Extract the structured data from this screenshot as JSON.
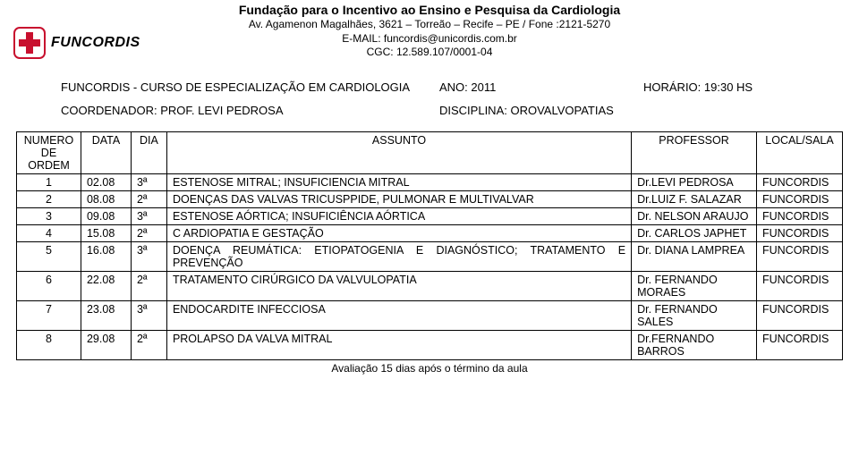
{
  "header": {
    "title": "Fundação para o Incentivo ao Ensino e Pesquisa da Cardiologia",
    "address": "Av. Agamenon Magalhães, 3621 – Torreão – Recife – PE / Fone :2121-5270",
    "email": "E-MAIL: funcordis@unicordis.com.br",
    "cgc": "CGC: 12.589.107/0001-04"
  },
  "logo_text": "FUNCORDIS",
  "course": {
    "title": "FUNCORDIS - CURSO DE ESPECIALIZAÇÃO EM CARDIOLOGIA",
    "year": "ANO: 2011",
    "time": "HORÁRIO: 19:30 HS",
    "coord": "COORDENADOR: PROF. LEVI PEDROSA",
    "disc": "DISCIPLINA: OROVALVOPATIAS"
  },
  "columns": {
    "num": "NUMERO DE ORDEM",
    "data": "DATA",
    "dia": "DIA",
    "assunto": "ASSUNTO",
    "prof": "PROFESSOR",
    "local": "LOCAL/SALA"
  },
  "rows_a": [
    {
      "n": "1",
      "data": "02.08",
      "dia": "3ª",
      "assunto": "ESTENOSE MITRAL; INSUFICIENCIA MITRAL",
      "prof": "Dr.LEVI PEDROSA",
      "local": "FUNCORDIS"
    },
    {
      "n": "2",
      "data": "08.08",
      "dia": "2ª",
      "assunto": "DOENÇAS DAS VALVAS TRICUSPPIDE, PULMONAR E MULTIVALVAR",
      "prof": "Dr.LUIZ F. SALAZAR",
      "local": "FUNCORDIS"
    },
    {
      "n": "3",
      "data": "09.08",
      "dia": "3ª",
      "assunto": "ESTENOSE AÓRTICA; INSUFICIÊNCIA AÓRTICA",
      "prof": "Dr. NELSON ARAUJO",
      "local": "FUNCORDIS"
    }
  ],
  "rows_b": [
    {
      "n": "4",
      "data": "15.08",
      "dia": "2ª",
      "assunto": "C ARDIOPATIA E GESTAÇÃO",
      "prof": "Dr. CARLOS JAPHET",
      "local": "FUNCORDIS"
    }
  ],
  "rows_c": [
    {
      "n": "5",
      "data": "16.08",
      "dia": "3ª",
      "assunto": "DOENÇA REUMÁTICA: ETIOPATOGENIA E DIAGNÓSTICO; TRATAMENTO E PREVENÇÃO",
      "prof": "Dr. DIANA LAMPREA",
      "local": "FUNCORDIS"
    },
    {
      "n": "6",
      "data": "22.08",
      "dia": "2ª",
      "assunto": "TRATAMENTO CIRÚRGICO DA VALVULOPATIA",
      "prof": "Dr. FERNANDO MORAES",
      "local": "FUNCORDIS"
    },
    {
      "n": "7",
      "data": "23.08",
      "dia": "3ª",
      "assunto": "ENDOCARDITE INFECCIOSA",
      "prof": "Dr. FERNANDO SALES",
      "local": "FUNCORDIS"
    },
    {
      "n": "8",
      "data": "29.08",
      "dia": "2ª",
      "assunto": "PROLAPSO DA VALVA MITRAL",
      "prof": "Dr.FERNANDO BARROS",
      "local": "FUNCORDIS"
    }
  ],
  "footer": "Avaliação 15 dias após o término da aula",
  "colors": {
    "red": "#c8102e",
    "black": "#000000",
    "white": "#ffffff"
  }
}
